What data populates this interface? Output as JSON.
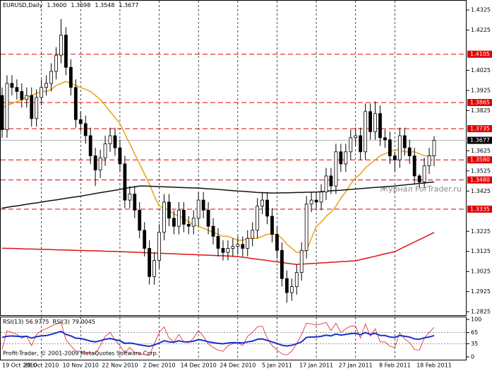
{
  "chart_data": {
    "type": "candlestick",
    "symbol": "EURUSD,Daily",
    "last_bar_labels": [
      "1.3600",
      "1.3698",
      "1.3548",
      "1.3677"
    ],
    "categories": [
      "19 Oct 2010",
      null,
      null,
      null,
      null,
      null,
      null,
      null,
      "29 Oct 2010",
      null,
      null,
      null,
      null,
      null,
      null,
      null,
      "10 Nov 2010",
      null,
      null,
      null,
      null,
      null,
      null,
      null,
      "22 Nov 2010",
      null,
      null,
      null,
      null,
      null,
      null,
      null,
      "2 Dec 2010",
      null,
      null,
      null,
      null,
      null,
      null,
      null,
      "14 Dec 2010",
      null,
      null,
      null,
      null,
      null,
      null,
      null,
      "24 Dec 2010",
      null,
      null,
      null,
      null,
      null,
      null,
      null,
      "5 Jan 2011",
      null,
      null,
      null,
      null,
      null,
      null,
      null,
      "17 Jan 2011",
      null,
      null,
      null,
      null,
      null,
      null,
      null,
      "27 Jan 2011",
      null,
      null,
      null,
      null,
      null,
      null,
      null,
      "8 Feb 2011",
      null,
      null,
      null,
      null,
      null,
      null,
      null,
      "18 Feb 2011"
    ],
    "open": [
      1.39,
      1.373,
      1.396,
      1.394,
      1.392,
      1.388,
      1.39,
      1.3785,
      1.389,
      1.394,
      1.396,
      1.402,
      1.41,
      1.42,
      1.404,
      1.394,
      1.378,
      1.376,
      1.37,
      1.36,
      1.353,
      1.359,
      1.366,
      1.37,
      1.364,
      1.356,
      1.338,
      1.341,
      1.333,
      1.323,
      1.314,
      1.3,
      1.308,
      1.322,
      1.337,
      1.329,
      1.325,
      1.333,
      1.326,
      1.325,
      1.329,
      1.338,
      1.333,
      1.325,
      1.32,
      1.314,
      1.312,
      1.314,
      1.315,
      1.316,
      1.314,
      1.319,
      1.323,
      1.335,
      1.338,
      1.33,
      1.321,
      1.313,
      1.299,
      1.292,
      1.295,
      1.302,
      1.313,
      1.336,
      1.338,
      1.337,
      1.342,
      1.35,
      1.345,
      1.362,
      1.356,
      1.362,
      1.369,
      1.37,
      1.362,
      1.382,
      1.372,
      1.381,
      1.369,
      1.368,
      1.36,
      1.358,
      1.37,
      1.364,
      1.36,
      1.35,
      1.347,
      1.355,
      1.36
    ],
    "high": [
      1.394,
      1.4,
      1.4,
      1.398,
      1.396,
      1.394,
      1.394,
      1.393,
      1.398,
      1.4,
      1.406,
      1.414,
      1.428,
      1.424,
      1.408,
      1.398,
      1.382,
      1.38,
      1.374,
      1.364,
      1.363,
      1.37,
      1.374,
      1.374,
      1.368,
      1.36,
      1.345,
      1.345,
      1.337,
      1.327,
      1.318,
      1.312,
      1.326,
      1.341,
      1.341,
      1.333,
      1.337,
      1.337,
      1.33,
      1.333,
      1.342,
      1.342,
      1.337,
      1.329,
      1.324,
      1.318,
      1.318,
      1.319,
      1.32,
      1.32,
      1.323,
      1.327,
      1.339,
      1.342,
      1.342,
      1.334,
      1.325,
      1.317,
      1.303,
      1.299,
      1.306,
      1.317,
      1.34,
      1.342,
      1.342,
      1.346,
      1.354,
      1.354,
      1.366,
      1.366,
      1.366,
      1.373,
      1.374,
      1.374,
      1.386,
      1.386,
      1.387,
      1.385,
      1.373,
      1.372,
      1.362,
      1.374,
      1.374,
      1.368,
      1.364,
      1.351,
      1.359,
      1.364,
      1.3698
    ],
    "low": [
      1.369,
      1.369,
      1.39,
      1.388,
      1.384,
      1.384,
      1.3745,
      1.3745,
      1.385,
      1.39,
      1.392,
      1.398,
      1.406,
      1.4,
      1.39,
      1.374,
      1.372,
      1.366,
      1.356,
      1.345,
      1.349,
      1.355,
      1.362,
      1.36,
      1.352,
      1.334,
      1.334,
      1.329,
      1.319,
      1.31,
      1.296,
      1.296,
      1.304,
      1.318,
      1.325,
      1.321,
      1.321,
      1.322,
      1.321,
      1.321,
      1.325,
      1.329,
      1.321,
      1.316,
      1.31,
      1.308,
      1.308,
      1.31,
      1.311,
      1.31,
      1.31,
      1.315,
      1.319,
      1.331,
      1.326,
      1.317,
      1.309,
      1.295,
      1.287,
      1.288,
      1.291,
      1.298,
      1.309,
      1.332,
      1.333,
      1.333,
      1.338,
      1.341,
      1.341,
      1.352,
      1.352,
      1.358,
      1.365,
      1.358,
      1.358,
      1.368,
      1.368,
      1.365,
      1.364,
      1.356,
      1.352,
      1.354,
      1.36,
      1.356,
      1.346,
      1.344,
      1.344,
      1.351,
      1.3548
    ],
    "close": [
      1.373,
      1.396,
      1.394,
      1.392,
      1.388,
      1.39,
      1.3785,
      1.389,
      1.394,
      1.396,
      1.402,
      1.41,
      1.42,
      1.404,
      1.394,
      1.378,
      1.376,
      1.37,
      1.36,
      1.353,
      1.359,
      1.366,
      1.37,
      1.364,
      1.356,
      1.338,
      1.341,
      1.333,
      1.323,
      1.314,
      1.3,
      1.308,
      1.322,
      1.337,
      1.329,
      1.325,
      1.333,
      1.326,
      1.325,
      1.329,
      1.338,
      1.333,
      1.325,
      1.32,
      1.314,
      1.312,
      1.314,
      1.315,
      1.316,
      1.314,
      1.319,
      1.323,
      1.335,
      1.338,
      1.33,
      1.321,
      1.313,
      1.299,
      1.292,
      1.295,
      1.302,
      1.313,
      1.336,
      1.338,
      1.337,
      1.342,
      1.35,
      1.345,
      1.362,
      1.356,
      1.362,
      1.369,
      1.37,
      1.362,
      1.382,
      1.372,
      1.381,
      1.369,
      1.368,
      1.36,
      1.358,
      1.37,
      1.364,
      1.36,
      1.35,
      1.347,
      1.355,
      1.36,
      1.3677
    ],
    "ylim": [
      1.2808,
      1.4371
    ],
    "yticks": [
      1.4325,
      1.4225,
      1.4025,
      1.3925,
      1.3825,
      1.3625,
      1.3525,
      1.3425,
      1.3225,
      1.3125,
      1.3025,
      1.2925,
      1.2825
    ],
    "levels": {
      "color": "#e00000",
      "values": [
        1.4105,
        1.3865,
        1.3735,
        {
          "value": 1.358,
          "label": "1.3580"
        },
        {
          "value": 1.348,
          "label": "1.3480"
        },
        1.3335
      ]
    },
    "grid": true,
    "overlays": [
      {
        "color": "#e8a317",
        "values": [
          1.384,
          1.385,
          1.386,
          1.387,
          1.388,
          1.389,
          1.39,
          1.391,
          1.392,
          1.392,
          1.393,
          1.395,
          1.396,
          1.397,
          1.396,
          1.395,
          1.394,
          1.393,
          1.392,
          1.39,
          1.388,
          1.385,
          1.382,
          1.379,
          1.376,
          1.371,
          1.366,
          1.361,
          1.356,
          1.351,
          1.346,
          1.34,
          1.335,
          1.334,
          1.333,
          1.331,
          1.33,
          1.329,
          1.327,
          1.326,
          1.325,
          1.324,
          1.323,
          1.322,
          1.321,
          1.32,
          1.32,
          1.319,
          1.318,
          1.318,
          1.319,
          1.319,
          1.319,
          1.32,
          1.321,
          1.321,
          1.321,
          1.319,
          1.316,
          1.314,
          1.312,
          1.312,
          1.313,
          1.319,
          1.325,
          1.327,
          1.33,
          1.332,
          1.335,
          1.339,
          1.342,
          1.346,
          1.349,
          1.351,
          1.354,
          1.356,
          1.358,
          1.36,
          1.361,
          1.362,
          1.363,
          1.363,
          1.362,
          1.362,
          1.362,
          1.361,
          1.36,
          1.36,
          1.36
        ]
      },
      {
        "color": "#111111",
        "values": [
          1.334,
          1.3344,
          1.3348,
          1.3351,
          1.3355,
          1.3359,
          1.3363,
          1.3366,
          1.337,
          1.3374,
          1.3378,
          1.3381,
          1.3385,
          1.3389,
          1.3393,
          1.3396,
          1.34,
          1.3404,
          1.3408,
          1.3413,
          1.3417,
          1.3421,
          1.3425,
          1.3429,
          1.3433,
          1.3438,
          1.3442,
          1.3446,
          1.345,
          1.345,
          1.3449,
          1.3448,
          1.3447,
          1.3446,
          1.3445,
          1.3444,
          1.3443,
          1.3442,
          1.3441,
          1.344,
          1.344,
          1.3438,
          1.3436,
          1.3435,
          1.3433,
          1.3431,
          1.3429,
          1.3427,
          1.3425,
          1.3424,
          1.3422,
          1.342,
          1.3418,
          1.3417,
          1.3416,
          1.3415,
          1.3415,
          1.3416,
          1.3416,
          1.3417,
          1.3418,
          1.3418,
          1.3419,
          1.3419,
          1.342,
          1.3422,
          1.3424,
          1.3426,
          1.3428,
          1.3429,
          1.3431,
          1.3433,
          1.3435,
          1.3437,
          1.3439,
          1.3441,
          1.3443,
          1.3444,
          1.3446,
          1.3448,
          1.345,
          1.3453,
          1.3455,
          1.3458,
          1.346,
          1.3463,
          1.3465,
          1.3468,
          1.347
        ]
      },
      {
        "color": "#e01010",
        "values": [
          1.3141,
          1.314,
          1.314,
          1.3139,
          1.3138,
          1.3137,
          1.3137,
          1.3136,
          1.3135,
          1.3135,
          1.3134,
          1.3133,
          1.3132,
          1.3132,
          1.3131,
          1.313,
          1.313,
          1.3129,
          1.3128,
          1.3128,
          1.3127,
          1.3126,
          1.3125,
          1.3125,
          1.3124,
          1.3123,
          1.3122,
          1.3121,
          1.312,
          1.3119,
          1.3118,
          1.3117,
          1.3116,
          1.3115,
          1.3114,
          1.3113,
          1.3112,
          1.3111,
          1.311,
          1.3109,
          1.3108,
          1.3107,
          1.3106,
          1.3105,
          1.3104,
          1.3103,
          1.3102,
          1.3101,
          1.3099,
          1.3096,
          1.3093,
          1.3089,
          1.3086,
          1.3083,
          1.308,
          1.3076,
          1.3073,
          1.307,
          1.3066,
          1.3063,
          1.306,
          1.3062,
          1.3063,
          1.3065,
          1.3066,
          1.3068,
          1.3069,
          1.3071,
          1.3072,
          1.3074,
          1.3075,
          1.3077,
          1.3078,
          1.3084,
          1.309,
          1.3095,
          1.3101,
          1.3107,
          1.3113,
          1.3118,
          1.3124,
          1.3136,
          1.3148,
          1.316,
          1.3172,
          1.3183,
          1.3195,
          1.3207,
          1.3219
        ]
      }
    ],
    "indicator": {
      "ylim": [
        0,
        100
      ],
      "yticks": [
        100,
        65,
        35,
        0
      ],
      "levels": [
        65,
        35
      ],
      "series": [
        {
          "name": "RSI(13)",
          "color": "#1a2fd0",
          "values": [
            52,
            55,
            56,
            55,
            54,
            55,
            50,
            54,
            56,
            57,
            60,
            64,
            68,
            60,
            56,
            50,
            49,
            46,
            42,
            40,
            43,
            47,
            49,
            46,
            43,
            36,
            37,
            35,
            32,
            30,
            28,
            32,
            37,
            43,
            40,
            39,
            43,
            40,
            40,
            42,
            46,
            44,
            40,
            38,
            36,
            35,
            37,
            38,
            38,
            37,
            40,
            42,
            47,
            48,
            44,
            40,
            36,
            31,
            29,
            31,
            35,
            40,
            52,
            53,
            53,
            55,
            58,
            56,
            61,
            58,
            60,
            62,
            63,
            59,
            65,
            60,
            63,
            57,
            57,
            53,
            52,
            57,
            55,
            53,
            48,
            47,
            51,
            53,
            56.9775
          ]
        },
        {
          "name": "RSI(3)",
          "color": "#e02020",
          "values": [
            20,
            70,
            65,
            60,
            50,
            55,
            30,
            60,
            70,
            75,
            82,
            88,
            92,
            45,
            30,
            15,
            15,
            12,
            10,
            8,
            30,
            55,
            65,
            45,
            30,
            10,
            25,
            12,
            8,
            6,
            4,
            35,
            65,
            80,
            50,
            40,
            60,
            40,
            38,
            50,
            70,
            55,
            35,
            25,
            18,
            15,
            30,
            35,
            38,
            30,
            55,
            65,
            80,
            82,
            50,
            30,
            18,
            8,
            5,
            15,
            35,
            60,
            90,
            88,
            85,
            88,
            92,
            70,
            90,
            65,
            75,
            82,
            82,
            50,
            88,
            55,
            75,
            40,
            40,
            28,
            25,
            65,
            48,
            38,
            20,
            18,
            50,
            65,
            79.0045
          ]
        }
      ]
    }
  },
  "watermark": "Журнал ForTrader.ru",
  "copyright": "Profit-Trader, © 2001-2009 MetaQuotes Software Corp."
}
